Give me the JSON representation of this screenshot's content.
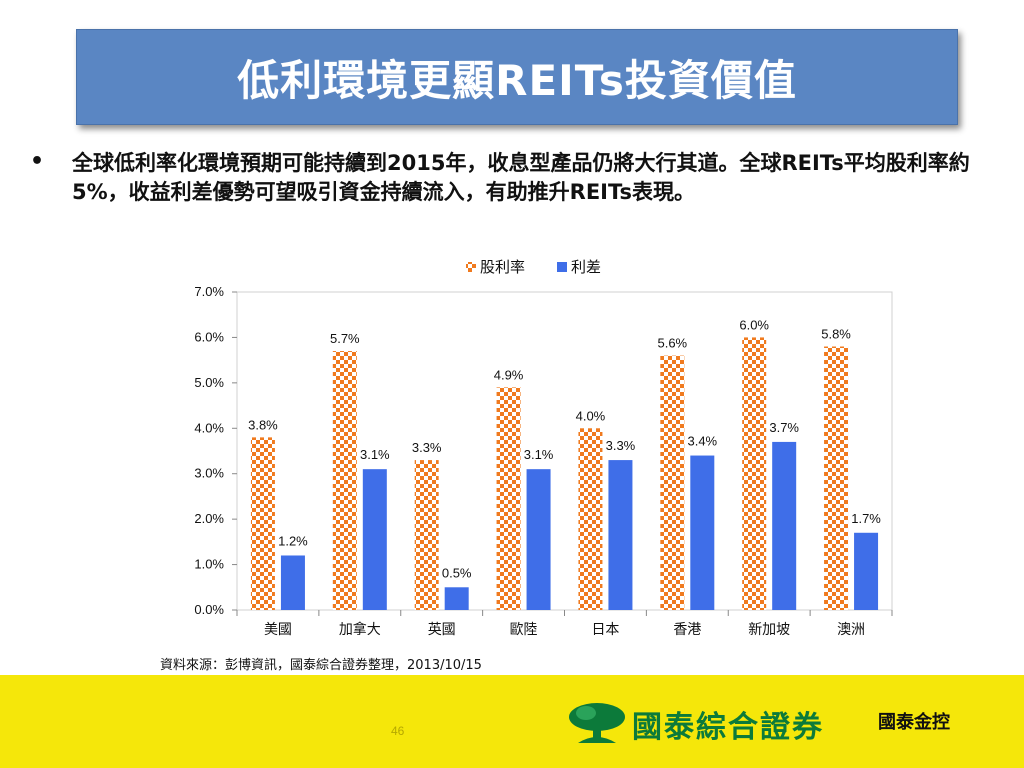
{
  "slide": {
    "title": "低利環境更顯REITs投資價值",
    "bullet_symbol": "•",
    "bullet_text": "全球低利率化環境預期可能持續到2015年，收息型產品仍將大行其道。全球REITs平均股利率約5%，收益利差優勢可望吸引資金持續流入，有助推升REITs表現。",
    "source": "資料來源：彭博資訊，國泰綜合證券整理，2013/10/15",
    "page_number": "46"
  },
  "footer": {
    "brand": "國泰綜合證券",
    "brand2": "國泰金控",
    "background_color": "#f5e70a",
    "brand_color": "#0c7a3a",
    "logo_icon": "tree-logo-icon"
  },
  "chart_data": {
    "type": "bar",
    "categories": [
      "美國",
      "加拿大",
      "英國",
      "歐陸",
      "日本",
      "香港",
      "新加坡",
      "澳洲"
    ],
    "series": [
      {
        "name": "股利率",
        "values": [
          3.8,
          5.7,
          3.3,
          4.9,
          4.0,
          5.6,
          6.0,
          5.8
        ],
        "labels": [
          "3.8%",
          "5.7%",
          "3.3%",
          "4.9%",
          "4.0%",
          "5.6%",
          "6.0%",
          "5.8%"
        ],
        "color": "#f07a1e",
        "pattern": "checker"
      },
      {
        "name": "利差",
        "values": [
          1.2,
          3.1,
          0.5,
          3.1,
          3.3,
          3.4,
          3.7,
          1.7
        ],
        "labels": [
          "1.2%",
          "3.1%",
          "0.5%",
          "3.1%",
          "3.3%",
          "3.4%",
          "3.7%",
          "1.7%"
        ],
        "color": "#3f6ee8"
      }
    ],
    "ylim": [
      0,
      7
    ],
    "yticks": [
      "0.0%",
      "1.0%",
      "2.0%",
      "3.0%",
      "4.0%",
      "5.0%",
      "6.0%",
      "7.0%"
    ],
    "grid": false,
    "legend_position": "top"
  }
}
